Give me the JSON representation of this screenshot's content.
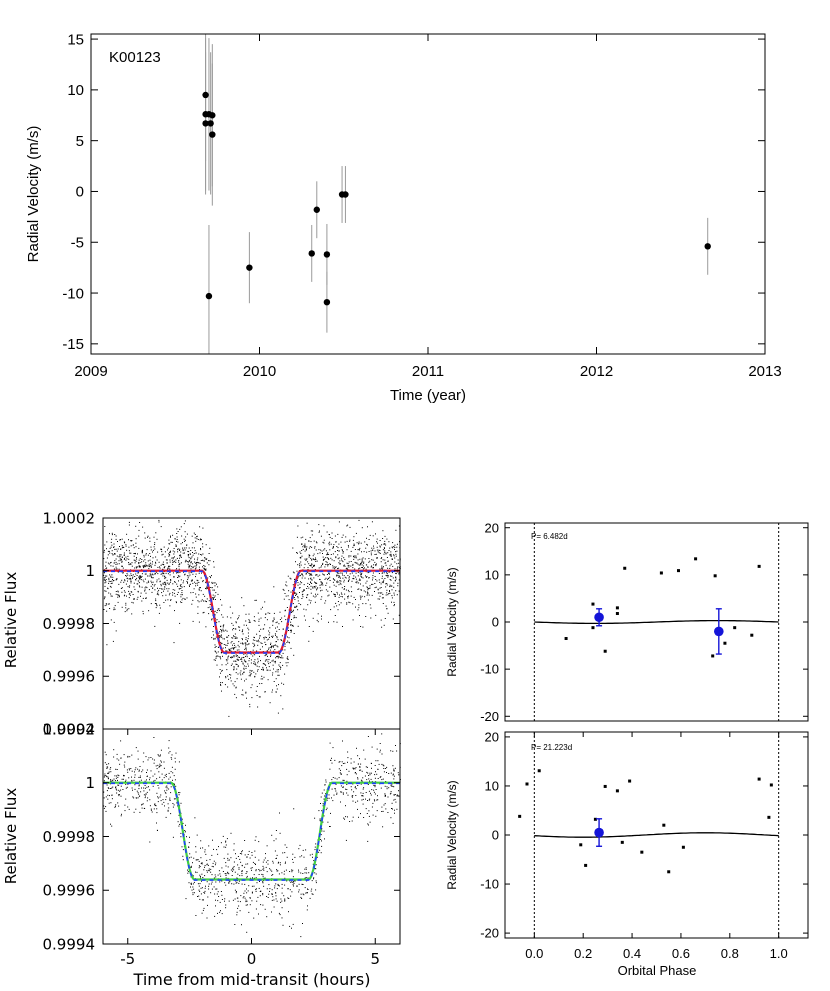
{
  "chart_data": [
    {
      "type": "scatter",
      "title": "K00123",
      "xlabel": "Time (year)",
      "ylabel": "Radial Velocity (m/s)",
      "xlim": [
        2009,
        2013
      ],
      "ylim": [
        -16,
        15.5
      ],
      "xticks": [
        "2009",
        "2010",
        "2011",
        "2012",
        "2013"
      ],
      "xtick_values": [
        2009,
        2010,
        2011,
        2012,
        2013
      ],
      "yticks": [
        "15",
        "10",
        "5",
        "0",
        "-5",
        "-10",
        "-15"
      ],
      "ytick_values": [
        15,
        10,
        5,
        0,
        -5,
        -10,
        -15
      ],
      "points": [
        {
          "x": 2009.68,
          "y": 9.5,
          "err": 6.5
        },
        {
          "x": 2009.68,
          "y": 7.6,
          "err": 7.5
        },
        {
          "x": 2009.7,
          "y": 7.6,
          "err": 7.5
        },
        {
          "x": 2009.72,
          "y": 7.5,
          "err": 7.0
        },
        {
          "x": 2009.68,
          "y": 6.7,
          "err": 7.0
        },
        {
          "x": 2009.71,
          "y": 6.7,
          "err": 7.0
        },
        {
          "x": 2009.72,
          "y": 5.6,
          "err": 7.0
        },
        {
          "x": 2009.7,
          "y": -10.3,
          "err": 7.0
        },
        {
          "x": 2009.94,
          "y": -7.5,
          "err": 3.5
        },
        {
          "x": 2010.31,
          "y": -6.1,
          "err": 2.8
        },
        {
          "x": 2010.34,
          "y": -1.8,
          "err": 2.8
        },
        {
          "x": 2010.4,
          "y": -6.2,
          "err": 3.0
        },
        {
          "x": 2010.4,
          "y": -10.9,
          "err": 3.0
        },
        {
          "x": 2010.49,
          "y": -0.3,
          "err": 2.8
        },
        {
          "x": 2010.51,
          "y": -0.3,
          "err": 2.8
        },
        {
          "x": 2012.66,
          "y": -5.4,
          "err": 2.8
        }
      ]
    },
    {
      "type": "scatter",
      "xlabel": "",
      "ylabel": "Relative Flux",
      "xlim": [
        -6,
        6
      ],
      "ylim": [
        0.9994,
        1.0002
      ],
      "yticks": [
        "1.0002",
        "1",
        "0.9998",
        "0.9996",
        "0.9994"
      ],
      "ytick_values": [
        1.0002,
        1.0,
        0.9998,
        0.9996,
        0.9994
      ],
      "series": [
        {
          "name": "photometry",
          "kind": "points",
          "scatter_sigma": 8e-05,
          "count": 2600
        },
        {
          "name": "transit model",
          "kind": "line",
          "color": "#e01830",
          "baseline": 1.0,
          "depth": 0.00031,
          "t_start": 2.0,
          "t_flat": 1.1
        },
        {
          "name": "binned model",
          "kind": "dashed",
          "color": "#2040ff"
        }
      ]
    },
    {
      "type": "scatter",
      "xlabel": "Time from mid-transit (hours)",
      "ylabel": "Relative Flux",
      "xlim": [
        -6,
        6
      ],
      "ylim": [
        0.9994,
        1.0002
      ],
      "xticks": [
        "-5",
        "0",
        "5"
      ],
      "xtick_values": [
        -5,
        0,
        5
      ],
      "yticks": [
        "1.0002",
        "1",
        "0.9998",
        "0.9996",
        "0.9994"
      ],
      "ytick_values": [
        1.0002,
        1.0,
        0.9998,
        0.9996,
        0.9994
      ],
      "series": [
        {
          "name": "photometry",
          "kind": "points",
          "scatter_sigma": 7e-05,
          "count": 1300
        },
        {
          "name": "transit model",
          "kind": "line",
          "color": "#40d040",
          "baseline": 1.0,
          "depth": 0.00036,
          "t_start": 3.25,
          "t_flat": 2.3
        },
        {
          "name": "binned model",
          "kind": "dashed",
          "color": "#2040ff"
        }
      ]
    },
    {
      "type": "scatter",
      "annotation": "P= 6.482d",
      "xlabel": "",
      "ylabel": "Radial Velocity (m/s)",
      "xlim": [
        -0.12,
        1.12
      ],
      "ylim": [
        -21,
        21
      ],
      "yticks": [
        "20",
        "10",
        "0",
        "-10",
        "-20"
      ],
      "ytick_values": [
        20,
        10,
        0,
        -10,
        -20
      ],
      "vlines": [
        0,
        1
      ],
      "model": {
        "amplitude": 0.3,
        "phase": 0.75
      },
      "small_points": [
        {
          "x": 0.13,
          "y": -3.5
        },
        {
          "x": 0.24,
          "y": 3.8
        },
        {
          "x": 0.24,
          "y": -1.2
        },
        {
          "x": 0.29,
          "y": -6.2
        },
        {
          "x": 0.34,
          "y": 1.8
        },
        {
          "x": 0.34,
          "y": 3.0
        },
        {
          "x": 0.37,
          "y": 11.4
        },
        {
          "x": 0.52,
          "y": 10.4
        },
        {
          "x": 0.59,
          "y": 10.9
        },
        {
          "x": 0.66,
          "y": 13.4
        },
        {
          "x": 0.73,
          "y": -7.2
        },
        {
          "x": 0.74,
          "y": 9.8
        },
        {
          "x": 0.82,
          "y": -1.2
        },
        {
          "x": 0.89,
          "y": -2.8
        },
        {
          "x": 0.92,
          "y": 11.8
        },
        {
          "x": 0.78,
          "y": -4.5
        }
      ],
      "binned_points": [
        {
          "x": 0.265,
          "y": 1.0,
          "err": 1.8
        },
        {
          "x": 0.755,
          "y": -2.0,
          "err": 4.8
        }
      ]
    },
    {
      "type": "scatter",
      "annotation": "P= 21.223d",
      "xlabel": "Orbital Phase",
      "ylabel": "Radial Velocity (m/s)",
      "xlim": [
        -0.12,
        1.12
      ],
      "ylim": [
        -21,
        21
      ],
      "xticks": [
        "0.0",
        "0.2",
        "0.4",
        "0.6",
        "0.8",
        "1.0"
      ],
      "xtick_values": [
        0.0,
        0.2,
        0.4,
        0.6,
        0.8,
        1.0
      ],
      "yticks": [
        "20",
        "10",
        "0",
        "-10",
        "-20"
      ],
      "ytick_values": [
        20,
        10,
        0,
        -10,
        -20
      ],
      "vlines": [
        0,
        1
      ],
      "model": {
        "amplitude": 0.45,
        "phase": 0.7
      },
      "small_points": [
        {
          "x": -0.06,
          "y": 3.8
        },
        {
          "x": -0.03,
          "y": 10.4
        },
        {
          "x": 0.02,
          "y": 13.1
        },
        {
          "x": 0.19,
          "y": -2.0
        },
        {
          "x": 0.21,
          "y": -6.2
        },
        {
          "x": 0.25,
          "y": 3.2
        },
        {
          "x": 0.29,
          "y": 9.9
        },
        {
          "x": 0.34,
          "y": 9.0
        },
        {
          "x": 0.36,
          "y": -1.5
        },
        {
          "x": 0.39,
          "y": 11.0
        },
        {
          "x": 0.44,
          "y": -3.5
        },
        {
          "x": 0.53,
          "y": 2.0
        },
        {
          "x": 0.55,
          "y": -7.5
        },
        {
          "x": 0.61,
          "y": -2.5
        },
        {
          "x": 0.92,
          "y": 11.4
        },
        {
          "x": 0.97,
          "y": 10.2
        },
        {
          "x": 0.96,
          "y": 3.6
        }
      ],
      "binned_points": [
        {
          "x": 0.265,
          "y": 0.5,
          "err": 2.8
        }
      ]
    }
  ]
}
